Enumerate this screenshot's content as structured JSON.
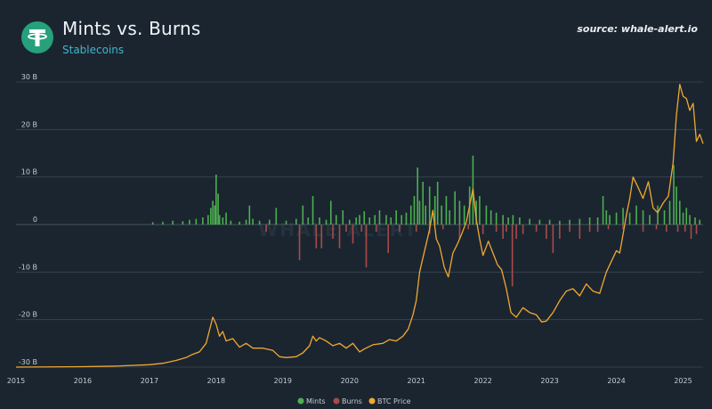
{
  "header": {
    "title": "Mints vs. Burns",
    "subtitle": "Stablecoins",
    "source": "source: whale-alert.io"
  },
  "watermark": "WHALE ALERT",
  "colors": {
    "background": "#1b2530",
    "grid": "#3a4652",
    "mints": "#4caf50",
    "burns": "#a94a4a",
    "btc": "#f0a830",
    "logo": "#26a17b"
  },
  "chart_data": {
    "type": "bar",
    "xlim": [
      2015.0,
      2025.3
    ],
    "ylim": [
      -30,
      30
    ],
    "y_ticks": [
      {
        "value": 30,
        "label": "30 B"
      },
      {
        "value": 20,
        "label": "20 B"
      },
      {
        "value": 10,
        "label": "10 B"
      },
      {
        "value": 0,
        "label": "0"
      },
      {
        "value": -10,
        "label": "-10 B"
      },
      {
        "value": -20,
        "label": "-20 B"
      },
      {
        "value": -30,
        "label": "-30 B"
      }
    ],
    "x_ticks": [
      {
        "value": 2015,
        "label": "2015"
      },
      {
        "value": 2016,
        "label": "2016"
      },
      {
        "value": 2017,
        "label": "2017"
      },
      {
        "value": 2018,
        "label": "2018"
      },
      {
        "value": 2019,
        "label": "2019"
      },
      {
        "value": 2020,
        "label": "2020"
      },
      {
        "value": 2021,
        "label": "2021"
      },
      {
        "value": 2022,
        "label": "2022"
      },
      {
        "value": 2023,
        "label": "2023"
      },
      {
        "value": 2024,
        "label": "2024"
      },
      {
        "value": 2025,
        "label": "2025"
      }
    ],
    "legend": {
      "position": "bottom-center",
      "items": [
        {
          "name": "Mints",
          "color": "#4caf50"
        },
        {
          "name": "Burns",
          "color": "#a94a4a"
        },
        {
          "name": "BTC Price",
          "color": "#f0a830"
        }
      ]
    },
    "series": [
      {
        "name": "Mints",
        "points": [
          [
            2017.05,
            0.5
          ],
          [
            2017.2,
            0.6
          ],
          [
            2017.35,
            0.8
          ],
          [
            2017.5,
            0.7
          ],
          [
            2017.6,
            1.0
          ],
          [
            2017.7,
            1.2
          ],
          [
            2017.8,
            1.5
          ],
          [
            2017.88,
            2.0
          ],
          [
            2017.92,
            3.5
          ],
          [
            2017.95,
            5.0
          ],
          [
            2017.98,
            4.0
          ],
          [
            2018.0,
            10.5
          ],
          [
            2018.03,
            6.5
          ],
          [
            2018.05,
            2.0
          ],
          [
            2018.1,
            1.5
          ],
          [
            2018.15,
            2.5
          ],
          [
            2018.22,
            0.8
          ],
          [
            2018.35,
            0.6
          ],
          [
            2018.45,
            1.0
          ],
          [
            2018.5,
            4.0
          ],
          [
            2018.55,
            1.2
          ],
          [
            2018.65,
            0.8
          ],
          [
            2018.8,
            1.0
          ],
          [
            2018.9,
            3.5
          ],
          [
            2019.05,
            0.8
          ],
          [
            2019.2,
            1.2
          ],
          [
            2019.3,
            4.0
          ],
          [
            2019.38,
            1.5
          ],
          [
            2019.45,
            6.0
          ],
          [
            2019.55,
            1.5
          ],
          [
            2019.65,
            1.0
          ],
          [
            2019.72,
            5.0
          ],
          [
            2019.8,
            2.0
          ],
          [
            2019.9,
            3.0
          ],
          [
            2020.0,
            1.0
          ],
          [
            2020.1,
            1.5
          ],
          [
            2020.15,
            2.0
          ],
          [
            2020.22,
            2.8
          ],
          [
            2020.3,
            1.5
          ],
          [
            2020.38,
            2.0
          ],
          [
            2020.45,
            3.0
          ],
          [
            2020.55,
            2.0
          ],
          [
            2020.62,
            1.5
          ],
          [
            2020.7,
            3.0
          ],
          [
            2020.78,
            2.0
          ],
          [
            2020.85,
            2.5
          ],
          [
            2020.92,
            4.0
          ],
          [
            2020.97,
            6.0
          ],
          [
            2021.02,
            12.0
          ],
          [
            2021.05,
            5.0
          ],
          [
            2021.1,
            9.0
          ],
          [
            2021.14,
            4.0
          ],
          [
            2021.2,
            8.0
          ],
          [
            2021.28,
            6.0
          ],
          [
            2021.32,
            9.0
          ],
          [
            2021.38,
            4.0
          ],
          [
            2021.45,
            6.0
          ],
          [
            2021.5,
            3.0
          ],
          [
            2021.58,
            7.0
          ],
          [
            2021.65,
            5.0
          ],
          [
            2021.72,
            4.0
          ],
          [
            2021.8,
            8.0
          ],
          [
            2021.85,
            14.5
          ],
          [
            2021.9,
            5.0
          ],
          [
            2021.95,
            6.0
          ],
          [
            2022.05,
            4.0
          ],
          [
            2022.12,
            3.0
          ],
          [
            2022.2,
            2.5
          ],
          [
            2022.3,
            2.0
          ],
          [
            2022.38,
            1.5
          ],
          [
            2022.45,
            2.0
          ],
          [
            2022.55,
            1.5
          ],
          [
            2022.7,
            1.2
          ],
          [
            2022.85,
            1.0
          ],
          [
            2023.0,
            1.0
          ],
          [
            2023.15,
            0.8
          ],
          [
            2023.3,
            1.0
          ],
          [
            2023.45,
            1.2
          ],
          [
            2023.6,
            1.5
          ],
          [
            2023.72,
            1.5
          ],
          [
            2023.8,
            6.0
          ],
          [
            2023.85,
            3.0
          ],
          [
            2023.9,
            2.0
          ],
          [
            2024.0,
            2.5
          ],
          [
            2024.1,
            3.5
          ],
          [
            2024.2,
            2.5
          ],
          [
            2024.3,
            4.0
          ],
          [
            2024.4,
            3.0
          ],
          [
            2024.5,
            2.0
          ],
          [
            2024.62,
            4.0
          ],
          [
            2024.72,
            3.0
          ],
          [
            2024.8,
            5.0
          ],
          [
            2024.86,
            12.5
          ],
          [
            2024.9,
            8.0
          ],
          [
            2024.95,
            5.0
          ],
          [
            2025.0,
            2.5
          ],
          [
            2025.05,
            3.5
          ],
          [
            2025.1,
            2.0
          ],
          [
            2025.18,
            1.5
          ],
          [
            2025.25,
            1.0
          ]
        ]
      },
      {
        "name": "Burns",
        "points": [
          [
            2018.75,
            -1.5
          ],
          [
            2019.25,
            -7.5
          ],
          [
            2019.5,
            -5.0
          ],
          [
            2019.58,
            -5.0
          ],
          [
            2019.75,
            -3.0
          ],
          [
            2019.85,
            -5.0
          ],
          [
            2019.95,
            -1.5
          ],
          [
            2020.05,
            -4.0
          ],
          [
            2020.18,
            -1.5
          ],
          [
            2020.25,
            -9.0
          ],
          [
            2020.4,
            -1.5
          ],
          [
            2020.58,
            -6.0
          ],
          [
            2020.75,
            -1.5
          ],
          [
            2021.0,
            -1.5
          ],
          [
            2021.2,
            -2.0
          ],
          [
            2021.4,
            -1.0
          ],
          [
            2021.65,
            -3.0
          ],
          [
            2021.78,
            -1.0
          ],
          [
            2022.0,
            -2.0
          ],
          [
            2022.2,
            -1.5
          ],
          [
            2022.3,
            -3.0
          ],
          [
            2022.35,
            -1.5
          ],
          [
            2022.44,
            -13.0
          ],
          [
            2022.5,
            -3.0
          ],
          [
            2022.6,
            -2.0
          ],
          [
            2022.8,
            -1.5
          ],
          [
            2022.95,
            -3.0
          ],
          [
            2023.05,
            -6.0
          ],
          [
            2023.15,
            -3.0
          ],
          [
            2023.3,
            -1.5
          ],
          [
            2023.45,
            -3.0
          ],
          [
            2023.6,
            -1.5
          ],
          [
            2023.72,
            -1.5
          ],
          [
            2023.88,
            -1.0
          ],
          [
            2024.1,
            -1.0
          ],
          [
            2024.4,
            -1.5
          ],
          [
            2024.6,
            -1.0
          ],
          [
            2024.75,
            -1.5
          ],
          [
            2024.92,
            -1.5
          ],
          [
            2025.03,
            -1.5
          ],
          [
            2025.12,
            -3.0
          ],
          [
            2025.2,
            -2.0
          ]
        ]
      },
      {
        "name": "BTC Price",
        "points": [
          [
            2015.0,
            -30.0
          ],
          [
            2016.0,
            -29.9
          ],
          [
            2016.5,
            -29.8
          ],
          [
            2017.0,
            -29.5
          ],
          [
            2017.2,
            -29.2
          ],
          [
            2017.4,
            -28.6
          ],
          [
            2017.55,
            -28.0
          ],
          [
            2017.65,
            -27.3
          ],
          [
            2017.75,
            -26.8
          ],
          [
            2017.85,
            -25.0
          ],
          [
            2017.95,
            -19.5
          ],
          [
            2018.0,
            -21.0
          ],
          [
            2018.05,
            -23.5
          ],
          [
            2018.1,
            -22.5
          ],
          [
            2018.15,
            -24.5
          ],
          [
            2018.25,
            -24.0
          ],
          [
            2018.35,
            -25.8
          ],
          [
            2018.45,
            -25.0
          ],
          [
            2018.55,
            -26.0
          ],
          [
            2018.7,
            -26.0
          ],
          [
            2018.85,
            -26.5
          ],
          [
            2018.95,
            -27.8
          ],
          [
            2019.05,
            -28.0
          ],
          [
            2019.2,
            -27.8
          ],
          [
            2019.3,
            -27.0
          ],
          [
            2019.4,
            -25.5
          ],
          [
            2019.45,
            -23.5
          ],
          [
            2019.5,
            -24.5
          ],
          [
            2019.55,
            -23.8
          ],
          [
            2019.65,
            -24.5
          ],
          [
            2019.75,
            -25.5
          ],
          [
            2019.85,
            -25.0
          ],
          [
            2019.95,
            -26.0
          ],
          [
            2020.05,
            -25.0
          ],
          [
            2020.15,
            -26.8
          ],
          [
            2020.22,
            -26.2
          ],
          [
            2020.35,
            -25.3
          ],
          [
            2020.5,
            -25.0
          ],
          [
            2020.6,
            -24.2
          ],
          [
            2020.7,
            -24.5
          ],
          [
            2020.8,
            -23.5
          ],
          [
            2020.88,
            -22.0
          ],
          [
            2020.95,
            -19.0
          ],
          [
            2021.0,
            -16.0
          ],
          [
            2021.05,
            -10.0
          ],
          [
            2021.1,
            -7.0
          ],
          [
            2021.15,
            -4.0
          ],
          [
            2021.2,
            -1.0
          ],
          [
            2021.25,
            3.0
          ],
          [
            2021.3,
            -3.0
          ],
          [
            2021.35,
            -4.5
          ],
          [
            2021.42,
            -9.0
          ],
          [
            2021.48,
            -11.0
          ],
          [
            2021.55,
            -6.0
          ],
          [
            2021.62,
            -4.0
          ],
          [
            2021.68,
            -2.0
          ],
          [
            2021.75,
            0.5
          ],
          [
            2021.8,
            4.0
          ],
          [
            2021.85,
            7.5
          ],
          [
            2021.9,
            1.0
          ],
          [
            2021.95,
            -3.0
          ],
          [
            2022.0,
            -6.5
          ],
          [
            2022.08,
            -3.5
          ],
          [
            2022.15,
            -6.0
          ],
          [
            2022.22,
            -8.5
          ],
          [
            2022.28,
            -9.5
          ],
          [
            2022.35,
            -13.5
          ],
          [
            2022.42,
            -18.5
          ],
          [
            2022.5,
            -19.5
          ],
          [
            2022.6,
            -17.5
          ],
          [
            2022.7,
            -18.5
          ],
          [
            2022.8,
            -19.0
          ],
          [
            2022.88,
            -20.5
          ],
          [
            2022.95,
            -20.3
          ],
          [
            2023.05,
            -18.5
          ],
          [
            2023.15,
            -16.0
          ],
          [
            2023.25,
            -14.0
          ],
          [
            2023.35,
            -13.5
          ],
          [
            2023.45,
            -15.0
          ],
          [
            2023.55,
            -12.5
          ],
          [
            2023.65,
            -14.0
          ],
          [
            2023.75,
            -14.5
          ],
          [
            2023.85,
            -10.0
          ],
          [
            2023.95,
            -7.0
          ],
          [
            2024.0,
            -5.5
          ],
          [
            2024.05,
            -6.0
          ],
          [
            2024.1,
            -2.0
          ],
          [
            2024.15,
            2.0
          ],
          [
            2024.2,
            5.5
          ],
          [
            2024.25,
            10.0
          ],
          [
            2024.32,
            8.0
          ],
          [
            2024.4,
            5.5
          ],
          [
            2024.48,
            9.0
          ],
          [
            2024.55,
            3.5
          ],
          [
            2024.62,
            2.5
          ],
          [
            2024.7,
            4.5
          ],
          [
            2024.78,
            6.0
          ],
          [
            2024.85,
            13.0
          ],
          [
            2024.9,
            23.0
          ],
          [
            2024.95,
            29.5
          ],
          [
            2025.0,
            27.0
          ],
          [
            2025.05,
            26.5
          ],
          [
            2025.1,
            24.0
          ],
          [
            2025.15,
            25.5
          ],
          [
            2025.2,
            17.5
          ],
          [
            2025.25,
            19.0
          ],
          [
            2025.3,
            17.0
          ]
        ]
      }
    ]
  }
}
